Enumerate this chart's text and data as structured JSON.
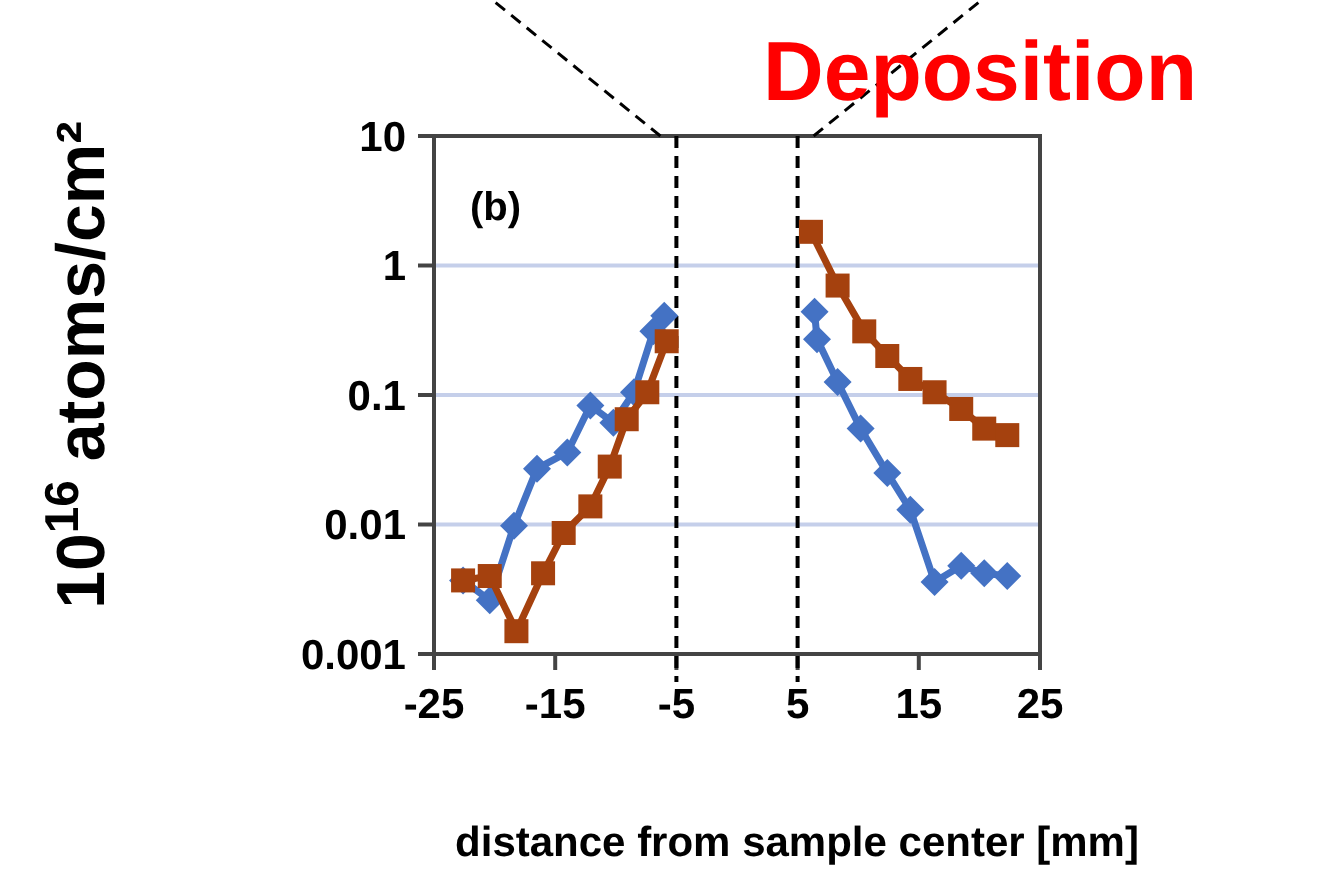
{
  "chart_data": {
    "type": "line",
    "title": "Deposition",
    "xlabel": "distance from sample center [mm]",
    "ylabel": "10$^{16}$ atoms/cm²",
    "annotations": [
      "(b)"
    ],
    "xlim": [
      -25,
      25
    ],
    "xticks": [
      -25,
      -15,
      -5,
      5,
      15,
      25
    ],
    "ylim": [
      0.001,
      10
    ],
    "yticks": [
      0.001,
      0.01,
      0.1,
      1,
      10
    ],
    "log": "y",
    "grid": "y",
    "ref_lines": [
      {
        "axis": "x",
        "value": -5,
        "color": "#000000",
        "line_style": "dashed"
      },
      {
        "axis": "x",
        "value": 5,
        "color": "#000000",
        "line_style": "dashed"
      }
    ],
    "series": [
      {
        "color": "#4472c4",
        "marker": "diamond",
        "x": [
          -22.6,
          -20.4,
          -18.4,
          -16.5,
          -14,
          -12.1,
          -10.2,
          -8.5,
          -6.9,
          -6,
          0,
          6.4,
          6.6,
          8.3,
          10.2,
          12.4,
          14.3,
          16.3,
          18.5,
          20.4,
          22.3
        ],
        "values": [
          0.0037,
          0.0026,
          0.0098,
          0.027,
          0.036,
          0.083,
          0.061,
          0.105,
          0.31,
          0.41,
          null,
          0.44,
          0.27,
          0.126,
          0.055,
          0.025,
          0.013,
          0.0036,
          0.0048,
          0.0042,
          0.004
        ]
      },
      {
        "color": "#a5410e",
        "marker": "square",
        "x": [
          -22.6,
          -20.4,
          -18.2,
          -16,
          -14.3,
          -12.1,
          -10.5,
          -9.1,
          -7.4,
          -5.8,
          0,
          6.1,
          8.3,
          10.5,
          12.4,
          14.3,
          16.3,
          18.5,
          20.4,
          22.3
        ],
        "values": [
          0.0037,
          0.004,
          0.0015,
          0.0042,
          0.0086,
          0.0138,
          0.028,
          0.065,
          0.105,
          0.26,
          null,
          1.82,
          0.7,
          0.31,
          0.2,
          0.133,
          0.105,
          0.078,
          0.055,
          0.049
        ]
      }
    ]
  }
}
